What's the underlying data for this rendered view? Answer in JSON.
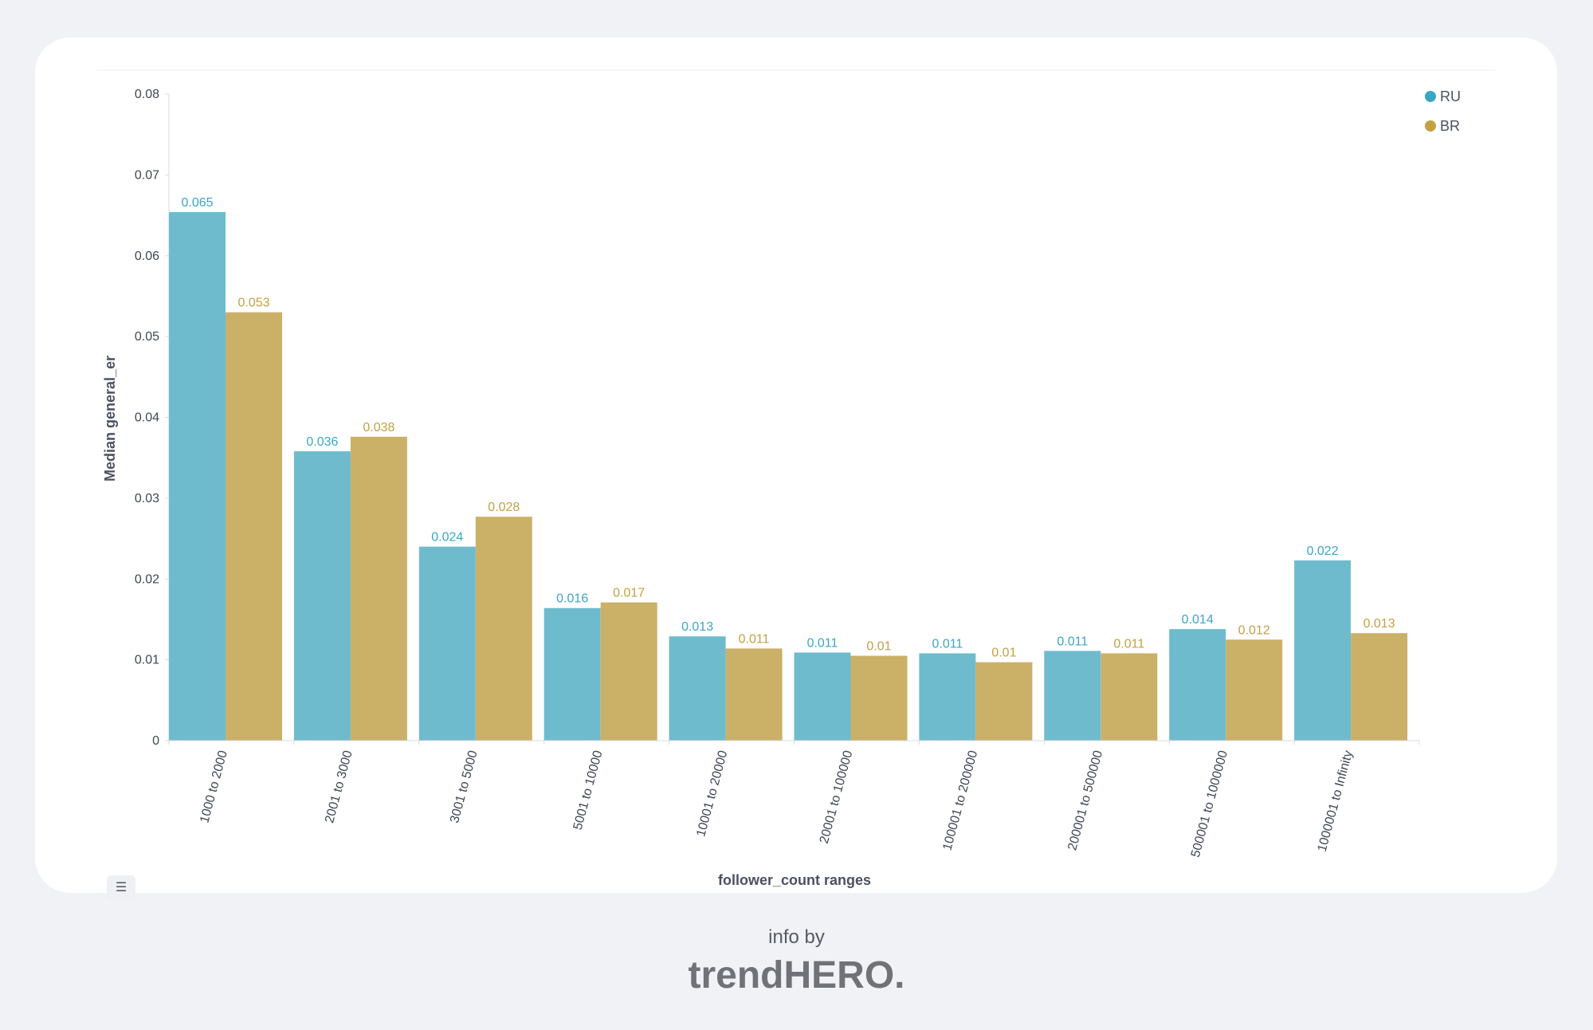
{
  "chart_data": {
    "type": "bar",
    "title": "",
    "xlabel": "follower_count ranges",
    "ylabel": "Median general_er",
    "ylim": [
      0,
      0.08
    ],
    "yticks": [
      "0",
      "0.01",
      "0.02",
      "0.03",
      "0.04",
      "0.05",
      "0.06",
      "0.07",
      "0.08"
    ],
    "legend_position": "top-right",
    "grid": false,
    "categories": [
      "1000 to 2000",
      "2001 to 3000",
      "3001 to 5000",
      "5001 to 10000",
      "10001 to 20000",
      "20001 to 100000",
      "100001 to 200000",
      "200001 to 500000",
      "500001 to 1000000",
      "1000001 to Infinity"
    ],
    "series": [
      {
        "name": "RU",
        "color": "#6fbbce",
        "legend_color": "#3aa6c6",
        "label_color": "#3aa6c6",
        "values": [
          0.0654,
          0.0358,
          0.024,
          0.0164,
          0.0129,
          0.0109,
          0.0108,
          0.0111,
          0.0138,
          0.0223
        ],
        "labels": [
          "0.065",
          "0.036",
          "0.024",
          "0.016",
          "0.013",
          "0.011",
          "0.011",
          "0.011",
          "0.014",
          "0.022"
        ]
      },
      {
        "name": "BR",
        "color": "#cbb068",
        "legend_color": "#c4a042",
        "label_color": "#c4a042",
        "values": [
          0.053,
          0.0376,
          0.0277,
          0.0171,
          0.0114,
          0.0105,
          0.0097,
          0.0108,
          0.0125,
          0.0133
        ],
        "labels": [
          "0.053",
          "0.038",
          "0.028",
          "0.017",
          "0.011",
          "0.01",
          "0.01",
          "0.011",
          "0.012",
          "0.013"
        ]
      }
    ]
  },
  "footer": {
    "info_by": "info by",
    "brand": "trendHERO."
  },
  "legend_toggle_icon": "list-icon"
}
